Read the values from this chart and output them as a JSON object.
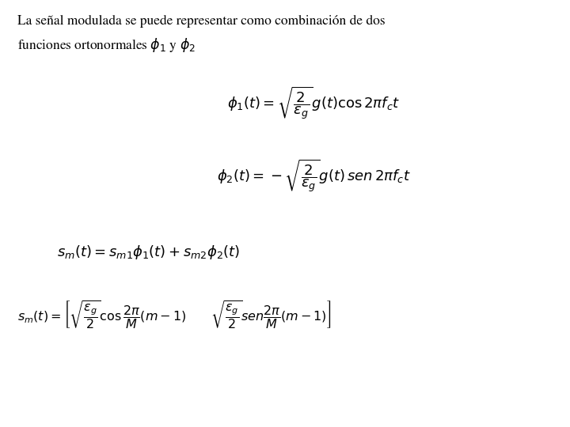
{
  "background_color": "#ffffff",
  "text_color": "#000000",
  "line1": "La señal modulada se puede representar como combinación de dos",
  "line2": "funciones ortonormales $\\phi_1$ y $\\phi_2$",
  "eq1": "$\\phi_1(t) = \\sqrt{\\dfrac{2}{\\varepsilon_g}}g(t)\\cos 2\\pi f_c t$",
  "eq2": "$\\phi_2(t) = -\\sqrt{\\dfrac{2}{\\varepsilon_g}}g(t)\\,sen\\,2\\pi f_c t$",
  "eq3": "$s_m(t) = s_{m1}\\phi_1(t) + s_{m2}\\phi_2(t)$",
  "eq4": "$s_m(t) = \\left[\\sqrt{\\dfrac{\\varepsilon_g}{2}}\\cos\\dfrac{2\\pi}{M}(m-1) \\qquad \\sqrt{\\dfrac{\\varepsilon_g}{2}}sen\\dfrac{2\\pi}{M}(m-1)\\right]$",
  "figsize": [
    7.2,
    5.4
  ],
  "dpi": 100
}
